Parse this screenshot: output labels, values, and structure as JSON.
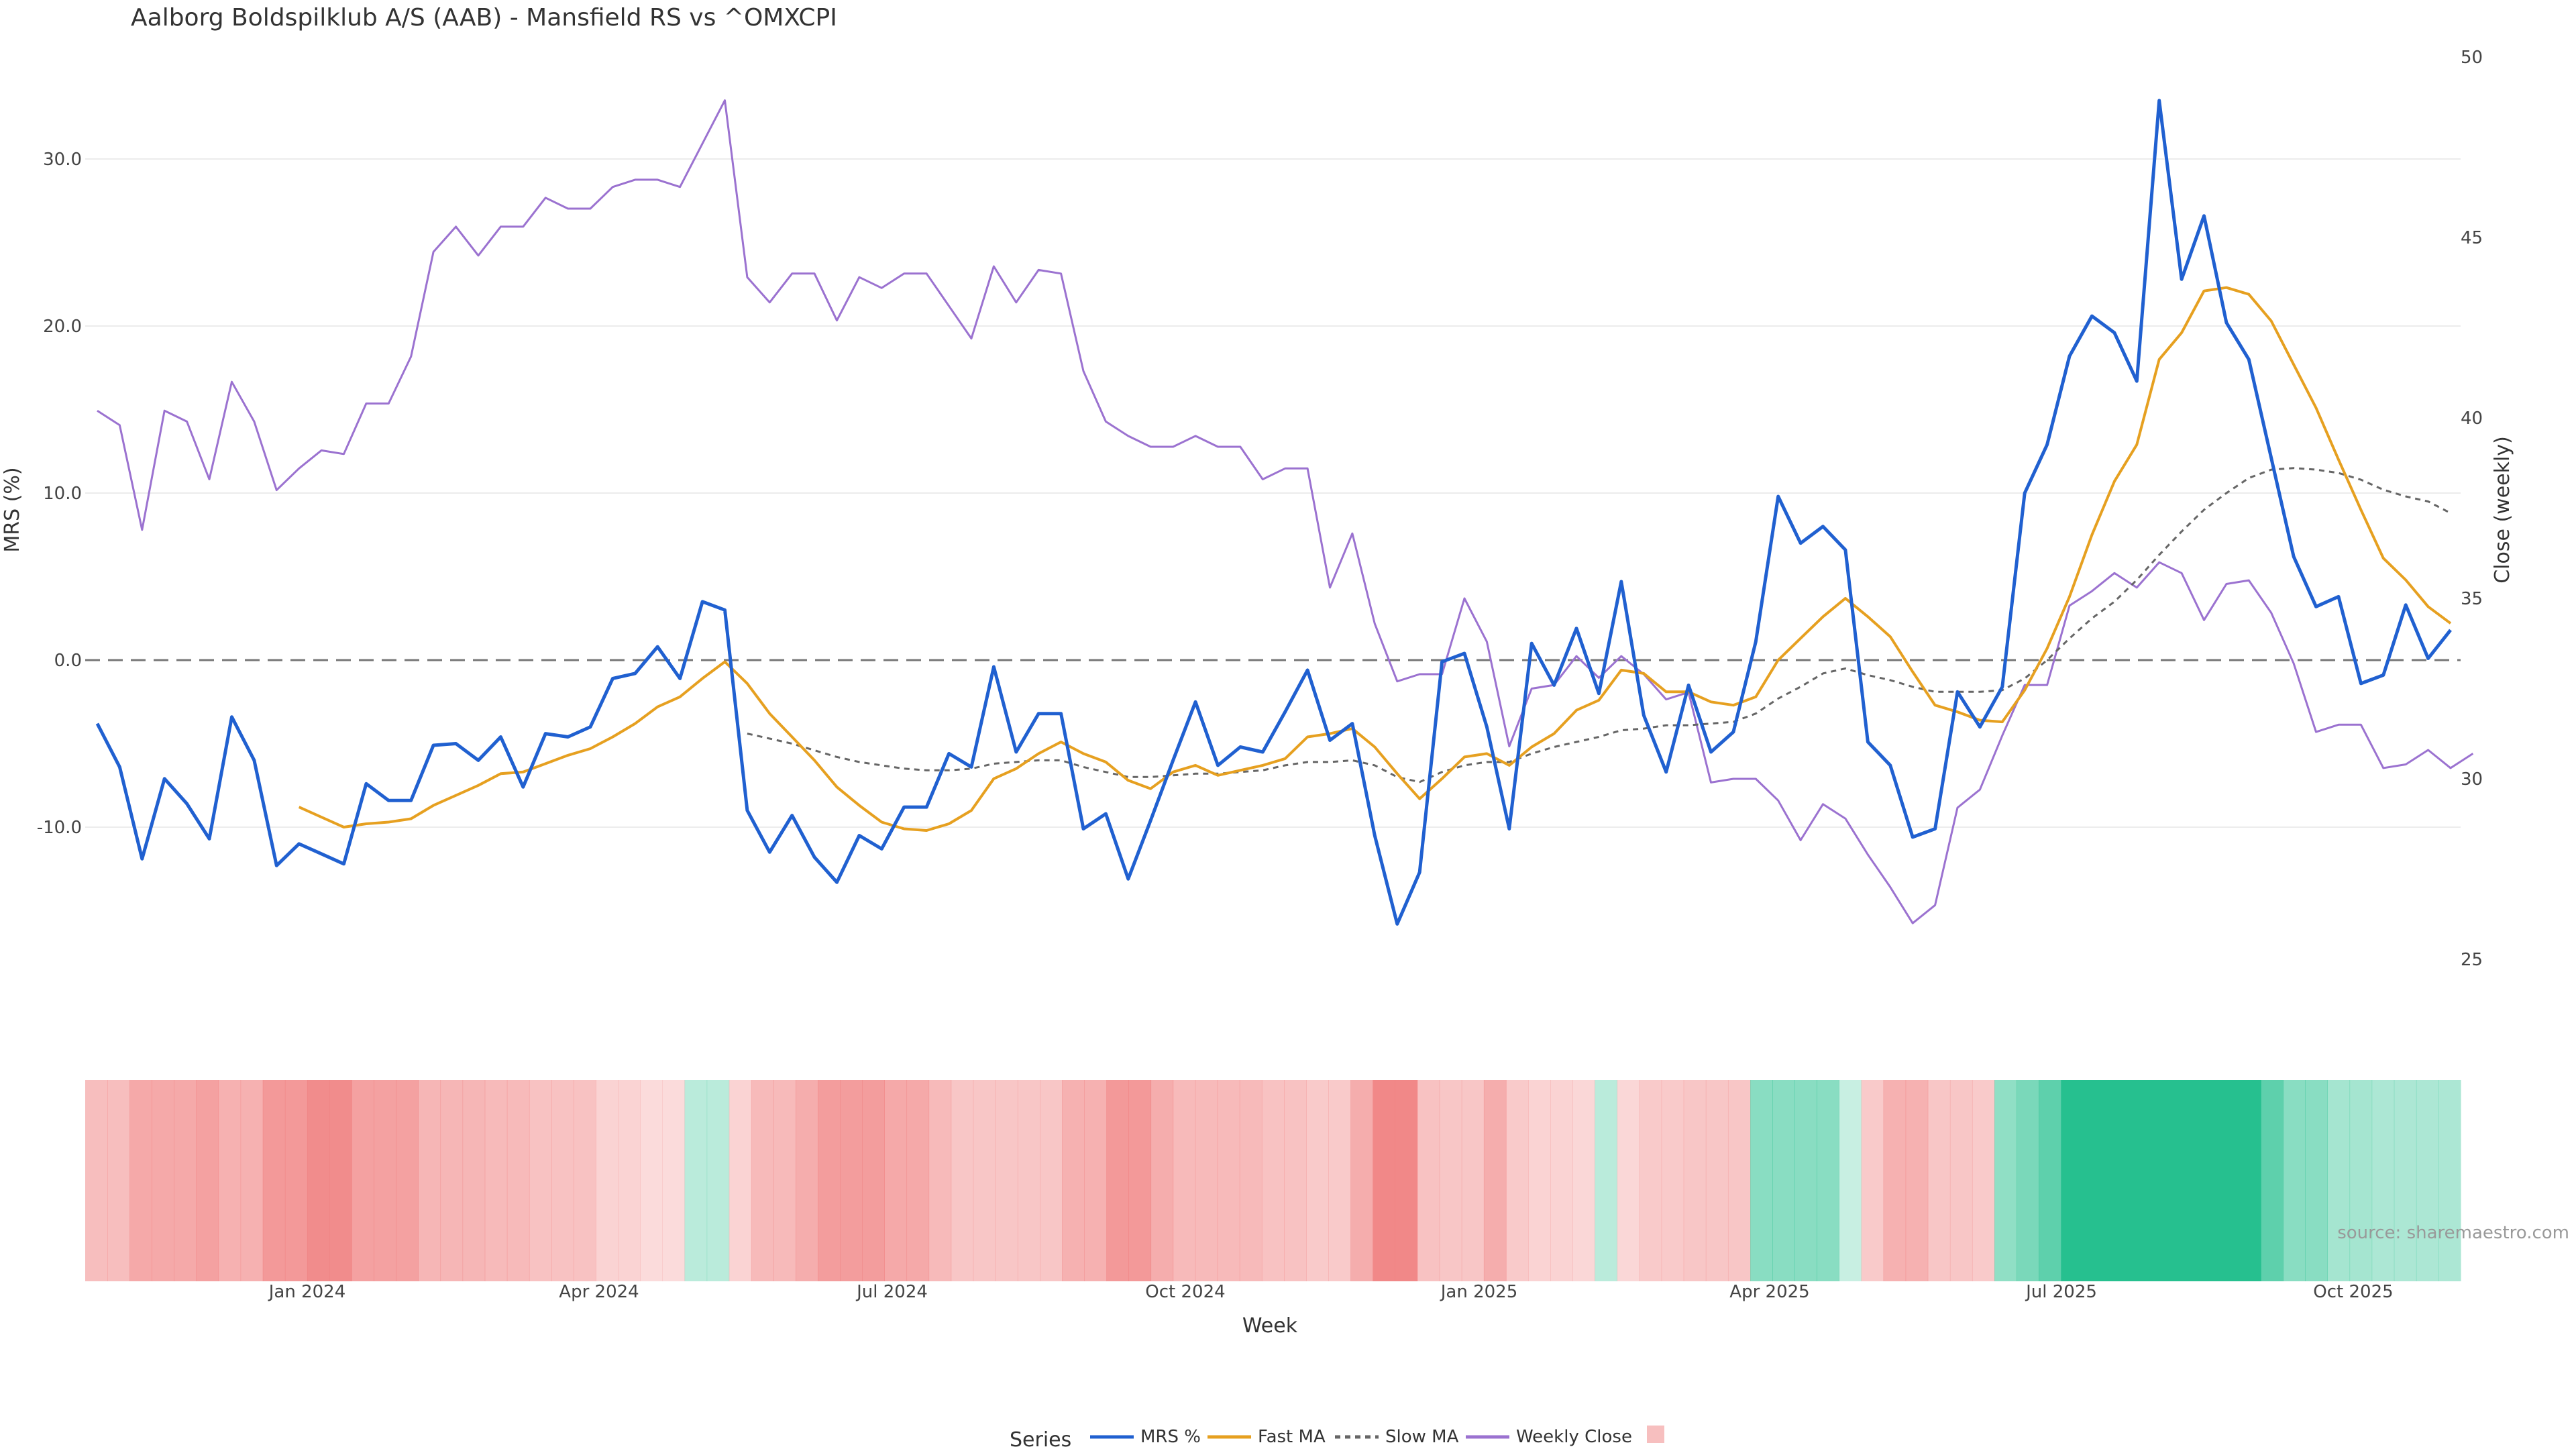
{
  "chart_data": {
    "type": "line",
    "title": "Aalborg Boldspilklub A/S (AAB) - Mansfield RS vs ^OMXCPI",
    "source": "source: sharemaestro.com",
    "xlabel": "Week",
    "ylabel_left": "MRS (%)",
    "ylabel_right": "Close (weekly)",
    "ylim_left": [
      -22,
      34
    ],
    "ylim_right": [
      22.5,
      50
    ],
    "yticks_left": [
      "30.0",
      "20.0",
      "10.0",
      "0.0",
      "-10.0"
    ],
    "yticks_right": [
      "50",
      "45",
      "40",
      "35",
      "30",
      "25"
    ],
    "xticks": [
      "Jan 2024",
      "Apr 2024",
      "Jul 2024",
      "Oct 2024",
      "Jan 2025",
      "Apr 2025",
      "Jul 2025",
      "Oct 2025"
    ],
    "grid": true,
    "legend_title": "Series",
    "legend_position": "bottom",
    "colors": {
      "mrs": "#2060d0",
      "fast": "#e6a020",
      "slow": "#666666",
      "close": "#9b72d0",
      "zero": "#777777",
      "positive": "#26c08f",
      "negative": "#f08080"
    },
    "series": [
      {
        "name": "MRS %",
        "values": [
          -3.8,
          -6.4,
          -11.9,
          -7.1,
          -8.6,
          -10.7,
          -3.4,
          -6.0,
          -12.3,
          -11.0,
          -11.6,
          -12.2,
          -7.4,
          -8.4,
          -8.4,
          -5.1,
          -5.0,
          -6.0,
          -4.6,
          -7.6,
          -4.4,
          -4.6,
          -4.0,
          -1.1,
          -0.8,
          0.8,
          -1.1,
          3.5,
          3.0,
          -9.0,
          -11.5,
          -9.3,
          -11.8,
          -13.3,
          -10.5,
          -11.3,
          -8.8,
          -8.8,
          -5.6,
          -6.4,
          -0.4,
          -5.5,
          -3.2,
          -3.2,
          -10.1,
          -9.2,
          -13.1,
          -9.6,
          -6.0,
          -2.5,
          -6.3,
          -5.2,
          -5.5,
          -3.1,
          -0.6,
          -4.8,
          -3.8,
          -10.5,
          -15.8,
          -12.7,
          -0.1,
          0.4,
          -4.0,
          -10.1,
          1.0,
          -1.5,
          1.9,
          -2.0,
          4.7,
          -3.3,
          -6.7,
          -1.5,
          -5.5,
          -4.3,
          1.1,
          9.8,
          7.0,
          8.0,
          6.6,
          -4.9,
          -6.3,
          -10.6,
          -10.1,
          -1.9,
          -4.0,
          -1.6,
          10.0,
          12.9,
          18.2,
          20.6,
          19.6,
          16.7,
          33.5,
          22.8,
          26.6,
          20.2,
          18.0,
          12.1,
          6.2,
          3.2,
          3.8,
          -1.4,
          -0.9,
          3.3,
          0.1,
          1.8
        ]
      },
      {
        "name": "Fast MA",
        "values": [
          null,
          null,
          null,
          null,
          null,
          null,
          null,
          null,
          null,
          -8.8,
          -9.4,
          -10.0,
          -9.8,
          -9.7,
          -9.5,
          -8.7,
          -8.1,
          -7.5,
          -6.8,
          -6.7,
          -6.2,
          -5.7,
          -5.3,
          -4.6,
          -3.8,
          -2.8,
          -2.2,
          -1.1,
          -0.1,
          -1.4,
          -3.2,
          -4.6,
          -6.0,
          -7.6,
          -8.7,
          -9.7,
          -10.1,
          -10.2,
          -9.8,
          -9.0,
          -7.1,
          -6.5,
          -5.6,
          -4.9,
          -5.6,
          -6.1,
          -7.2,
          -7.7,
          -6.7,
          -6.3,
          -6.9,
          -6.6,
          -6.3,
          -5.9,
          -4.6,
          -4.4,
          -4.1,
          -5.2,
          -6.8,
          -8.3,
          -7.1,
          -5.8,
          -5.6,
          -6.3,
          -5.2,
          -4.4,
          -3.0,
          -2.4,
          -0.6,
          -0.8,
          -1.9,
          -1.9,
          -2.5,
          -2.7,
          -2.2,
          0.0,
          1.3,
          2.6,
          3.7,
          2.6,
          1.4,
          -0.7,
          -2.7,
          -3.1,
          -3.6,
          -3.7,
          -1.8,
          0.7,
          3.8,
          7.5,
          10.7,
          12.9,
          18.0,
          19.6,
          22.1,
          22.3,
          21.9,
          20.3,
          17.7,
          15.1,
          12.0,
          9.0,
          6.1,
          4.8,
          3.2,
          2.2
        ]
      },
      {
        "name": "Slow MA",
        "values": [
          null,
          null,
          null,
          null,
          null,
          null,
          null,
          null,
          null,
          null,
          null,
          null,
          null,
          null,
          null,
          null,
          null,
          null,
          null,
          null,
          null,
          null,
          null,
          null,
          null,
          null,
          null,
          null,
          null,
          -4.4,
          -4.7,
          -5.0,
          -5.4,
          -5.8,
          -6.1,
          -6.3,
          -6.5,
          -6.6,
          -6.6,
          -6.5,
          -6.2,
          -6.1,
          -6.0,
          -6.0,
          -6.4,
          -6.7,
          -7.0,
          -7.0,
          -6.9,
          -6.8,
          -6.8,
          -6.7,
          -6.6,
          -6.3,
          -6.1,
          -6.1,
          -6.0,
          -6.3,
          -7.0,
          -7.3,
          -6.7,
          -6.3,
          -6.1,
          -6.1,
          -5.6,
          -5.2,
          -4.9,
          -4.6,
          -4.2,
          -4.1,
          -3.9,
          -3.9,
          -3.8,
          -3.7,
          -3.2,
          -2.3,
          -1.6,
          -0.8,
          -0.5,
          -0.9,
          -1.2,
          -1.6,
          -1.9,
          -1.9,
          -1.9,
          -1.8,
          -1.1,
          0.0,
          1.3,
          2.5,
          3.5,
          4.8,
          6.3,
          7.7,
          9.0,
          10.0,
          10.9,
          11.4,
          11.5,
          11.4,
          11.2,
          10.8,
          10.2,
          9.8,
          9.5,
          8.8
        ]
      },
      {
        "name": "Weekly Close",
        "values": [
          40.2,
          39.8,
          36.9,
          40.2,
          39.9,
          38.3,
          41.0,
          39.9,
          38.0,
          38.6,
          39.1,
          39.0,
          40.4,
          40.4,
          41.7,
          44.6,
          45.3,
          44.5,
          45.3,
          45.3,
          46.1,
          45.8,
          45.8,
          46.4,
          46.6,
          46.6,
          46.4,
          47.6,
          48.8,
          43.9,
          43.2,
          44.0,
          44.0,
          42.7,
          43.9,
          43.6,
          44.0,
          44.0,
          43.1,
          42.2,
          44.2,
          43.2,
          44.1,
          44.0,
          41.3,
          39.9,
          39.5,
          39.2,
          39.2,
          39.5,
          39.2,
          39.2,
          38.3,
          38.6,
          38.6,
          35.3,
          36.8,
          34.3,
          32.7,
          32.9,
          32.9,
          35.0,
          33.8,
          30.9,
          32.5,
          32.6,
          33.4,
          32.8,
          33.4,
          32.9,
          32.2,
          32.4,
          29.9,
          30.0,
          30.0,
          29.4,
          28.3,
          29.3,
          28.9,
          27.9,
          27.0,
          26.0,
          26.5,
          29.2,
          29.7,
          31.2,
          32.6,
          32.6,
          34.8,
          35.2,
          35.7,
          35.3,
          36.0,
          35.7,
          34.4,
          35.4,
          35.5,
          34.6,
          33.2,
          31.3,
          31.5,
          31.5,
          30.3,
          30.4,
          30.8,
          30.3,
          30.7
        ]
      }
    ],
    "heatmap_values": [
      -4.5,
      -4.5,
      -7.0,
      -7.0,
      -7.0,
      -8.0,
      -6.0,
      -6.0,
      -9.0,
      -9.0,
      -10.5,
      -10.5,
      -8.0,
      -8.0,
      -8.0,
      -5.5,
      -5.5,
      -5.5,
      -5.0,
      -5.0,
      -4.0,
      -4.0,
      -4.0,
      -2.0,
      -2.0,
      -1.0,
      -1.0,
      1.5,
      1.5,
      -2.0,
      -5.0,
      -5.0,
      -6.5,
      -8.5,
      -8.5,
      -8.5,
      -7.0,
      -7.0,
      -5.0,
      -3.5,
      -3.5,
      -3.5,
      -3.5,
      -3.5,
      -6.0,
      -6.0,
      -9.0,
      -9.0,
      -6.5,
      -5.0,
      -5.0,
      -5.0,
      -5.0,
      -4.0,
      -4.0,
      -3.0,
      -3.0,
      -6.5,
      -11.0,
      -11.0,
      -4.0,
      -3.5,
      -3.5,
      -6.5,
      -3.0,
      -2.0,
      -2.0,
      -1.5,
      1.5,
      -1.5,
      -3.0,
      -3.0,
      -3.5,
      -3.5,
      -3.5,
      5.0,
      5.0,
      5.0,
      5.0,
      0.5,
      -3.0,
      -6.0,
      -6.0,
      -3.5,
      -3.5,
      -3.0,
      4.5,
      6.0,
      8.0,
      12.0,
      12.0,
      12.0,
      12.0,
      12.0,
      12.0,
      12.0,
      12.0,
      12.0,
      8.0,
      5.0,
      5.0,
      3.0,
      3.0,
      2.5,
      2.5,
      2.5,
      2.5
    ]
  }
}
